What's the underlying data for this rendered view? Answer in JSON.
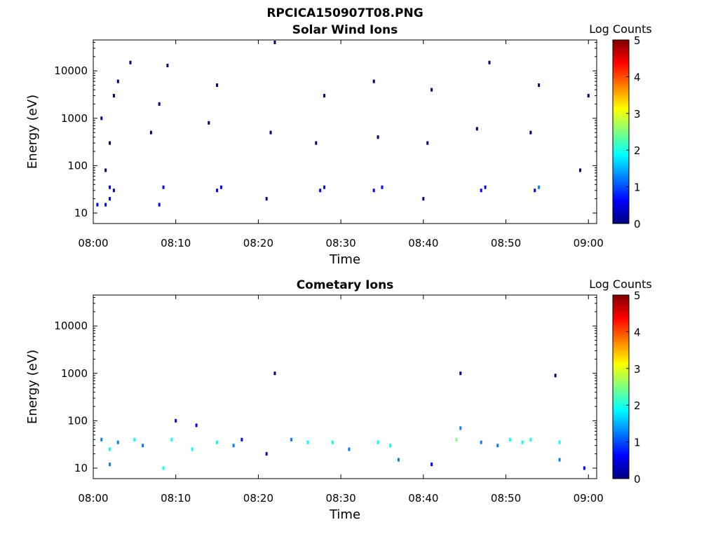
{
  "figure": {
    "title": "RPCICA150907T08.PNG"
  },
  "colorbar_colors": [
    "#00007f",
    "#0000ff",
    "#007fff",
    "#00ffff",
    "#7fff7f",
    "#ffff00",
    "#ff7f00",
    "#ff0000",
    "#7f0000"
  ],
  "chart_data": [
    {
      "type": "heatmap",
      "title": "Solar Wind Ions",
      "xlabel": "Time",
      "ylabel": "Energy (eV)",
      "yscale": "log",
      "xlim": [
        "08:00",
        "09:01"
      ],
      "ylim": [
        6,
        45000
      ],
      "xticks": [
        "08:00",
        "08:10",
        "08:20",
        "08:30",
        "08:40",
        "08:50",
        "09:00"
      ],
      "yticks": [
        {
          "value": 10,
          "label": "10"
        },
        {
          "value": 100,
          "label": "100"
        },
        {
          "value": 1000,
          "label": "1000"
        },
        {
          "value": 10000,
          "label": "10000"
        }
      ],
      "colorbar": {
        "label": "Log Counts",
        "range": [
          0,
          5
        ],
        "ticks": [
          "0",
          "1",
          "2",
          "3",
          "4",
          "5"
        ]
      },
      "points": [
        {
          "t": "08:00.5",
          "e": 15,
          "c": 0.5
        },
        {
          "t": "08:01.5",
          "e": 15,
          "c": 0.5
        },
        {
          "t": "08:02",
          "e": 20,
          "c": 0.7
        },
        {
          "t": "08:02.5",
          "e": 30,
          "c": 0.8
        },
        {
          "t": "08:02",
          "e": 35,
          "c": 0.8
        },
        {
          "t": "08:01.5",
          "e": 80,
          "c": 0.1
        },
        {
          "t": "08:02",
          "e": 300,
          "c": 0.1
        },
        {
          "t": "08:01",
          "e": 1000,
          "c": 0.1
        },
        {
          "t": "08:02.5",
          "e": 3000,
          "c": 0.1
        },
        {
          "t": "08:03",
          "e": 6000,
          "c": 0.1
        },
        {
          "t": "08:04.5",
          "e": 15000,
          "c": 0.1
        },
        {
          "t": "08:08",
          "e": 15,
          "c": 0.4
        },
        {
          "t": "08:08.5",
          "e": 35,
          "c": 0.5
        },
        {
          "t": "08:07",
          "e": 500,
          "c": 0.1
        },
        {
          "t": "08:08",
          "e": 2000,
          "c": 0.1
        },
        {
          "t": "08:09",
          "e": 13000,
          "c": 0.1
        },
        {
          "t": "08:15",
          "e": 30,
          "c": 0.6
        },
        {
          "t": "08:15.5",
          "e": 35,
          "c": 0.7
        },
        {
          "t": "08:14",
          "e": 800,
          "c": 0.1
        },
        {
          "t": "08:15",
          "e": 5000,
          "c": 0.1
        },
        {
          "t": "08:21",
          "e": 20,
          "c": 0.3
        },
        {
          "t": "08:21.5",
          "e": 500,
          "c": 0.1
        },
        {
          "t": "08:22",
          "e": 40000,
          "c": 0.1
        },
        {
          "t": "08:27.5",
          "e": 30,
          "c": 0.7
        },
        {
          "t": "08:28",
          "e": 35,
          "c": 0.8
        },
        {
          "t": "08:27",
          "e": 300,
          "c": 0.1
        },
        {
          "t": "08:28",
          "e": 3000,
          "c": 0.1
        },
        {
          "t": "08:34",
          "e": 30,
          "c": 0.8
        },
        {
          "t": "08:35",
          "e": 35,
          "c": 0.9
        },
        {
          "t": "08:34.5",
          "e": 400,
          "c": 0.1
        },
        {
          "t": "08:34",
          "e": 6000,
          "c": 0.1
        },
        {
          "t": "08:40",
          "e": 20,
          "c": 0.3
        },
        {
          "t": "08:40.5",
          "e": 300,
          "c": 0.1
        },
        {
          "t": "08:41",
          "e": 4000,
          "c": 0.1
        },
        {
          "t": "08:47",
          "e": 30,
          "c": 0.8
        },
        {
          "t": "08:47.5",
          "e": 35,
          "c": 0.9
        },
        {
          "t": "08:46.5",
          "e": 600,
          "c": 0.1
        },
        {
          "t": "08:48",
          "e": 15000,
          "c": 0.1
        },
        {
          "t": "08:53.5",
          "e": 30,
          "c": 0.9
        },
        {
          "t": "08:54",
          "e": 35,
          "c": 1.0
        },
        {
          "t": "08:53",
          "e": 500,
          "c": 0.1
        },
        {
          "t": "08:54",
          "e": 5000,
          "c": 0.1
        },
        {
          "t": "08:59",
          "e": 80,
          "c": 0.1
        },
        {
          "t": "09:00",
          "e": 3000,
          "c": 0.1
        }
      ]
    },
    {
      "type": "heatmap",
      "title": "Cometary Ions",
      "xlabel": "Time",
      "ylabel": "Energy (eV)",
      "yscale": "log",
      "xlim": [
        "08:00",
        "09:01"
      ],
      "ylim": [
        6,
        45000
      ],
      "xticks": [
        "08:00",
        "08:10",
        "08:20",
        "08:30",
        "08:40",
        "08:50",
        "09:00"
      ],
      "yticks": [
        {
          "value": 10,
          "label": "10"
        },
        {
          "value": 100,
          "label": "100"
        },
        {
          "value": 1000,
          "label": "1000"
        },
        {
          "value": 10000,
          "label": "10000"
        }
      ],
      "colorbar": {
        "label": "Log Counts",
        "range": [
          0,
          5
        ],
        "ticks": [
          "0",
          "1",
          "2",
          "3",
          "4",
          "5"
        ]
      },
      "points": [
        {
          "t": "08:01",
          "e": 40,
          "c": 1.2
        },
        {
          "t": "08:02",
          "e": 25,
          "c": 1.8
        },
        {
          "t": "08:02",
          "e": 12,
          "c": 1.5
        },
        {
          "t": "08:03",
          "e": 35,
          "c": 1.0
        },
        {
          "t": "08:05",
          "e": 40,
          "c": 2.0
        },
        {
          "t": "08:06",
          "e": 30,
          "c": 1.2
        },
        {
          "t": "08:08.5",
          "e": 10,
          "c": 1.6
        },
        {
          "t": "08:09.5",
          "e": 40,
          "c": 1.8
        },
        {
          "t": "08:10",
          "e": 100,
          "c": 0.8
        },
        {
          "t": "08:12",
          "e": 25,
          "c": 1.6
        },
        {
          "t": "08:12.5",
          "e": 80,
          "c": 0.6
        },
        {
          "t": "08:15",
          "e": 35,
          "c": 1.9
        },
        {
          "t": "08:17",
          "e": 30,
          "c": 1.2
        },
        {
          "t": "08:18",
          "e": 40,
          "c": 0.9
        },
        {
          "t": "08:21",
          "e": 20,
          "c": 0.6
        },
        {
          "t": "08:24",
          "e": 40,
          "c": 1.0
        },
        {
          "t": "08:26",
          "e": 35,
          "c": 1.6
        },
        {
          "t": "08:29",
          "e": 35,
          "c": 1.8
        },
        {
          "t": "08:31",
          "e": 25,
          "c": 1.0
        },
        {
          "t": "08:34.5",
          "e": 35,
          "c": 2.1
        },
        {
          "t": "08:36",
          "e": 30,
          "c": 1.8
        },
        {
          "t": "08:37",
          "e": 15,
          "c": 1.4
        },
        {
          "t": "08:41",
          "e": 12,
          "c": 0.6
        },
        {
          "t": "08:44",
          "e": 40,
          "c": 2.2
        },
        {
          "t": "08:44.5",
          "e": 70,
          "c": 1.0
        },
        {
          "t": "08:47",
          "e": 35,
          "c": 1.5
        },
        {
          "t": "08:49",
          "e": 30,
          "c": 1.2
        },
        {
          "t": "08:50.5",
          "e": 40,
          "c": 1.8
        },
        {
          "t": "08:52",
          "e": 35,
          "c": 2.0
        },
        {
          "t": "08:53",
          "e": 40,
          "c": 1.7
        },
        {
          "t": "08:56.5",
          "e": 35,
          "c": 2.0
        },
        {
          "t": "08:56.5",
          "e": 15,
          "c": 1.3
        },
        {
          "t": "08:59.5",
          "e": 10,
          "c": 0.5
        },
        {
          "t": "08:44.5",
          "e": 1000,
          "c": 0.1
        },
        {
          "t": "08:56",
          "e": 900,
          "c": 0.1
        },
        {
          "t": "08:22",
          "e": 1000,
          "c": 0.1
        }
      ]
    }
  ]
}
